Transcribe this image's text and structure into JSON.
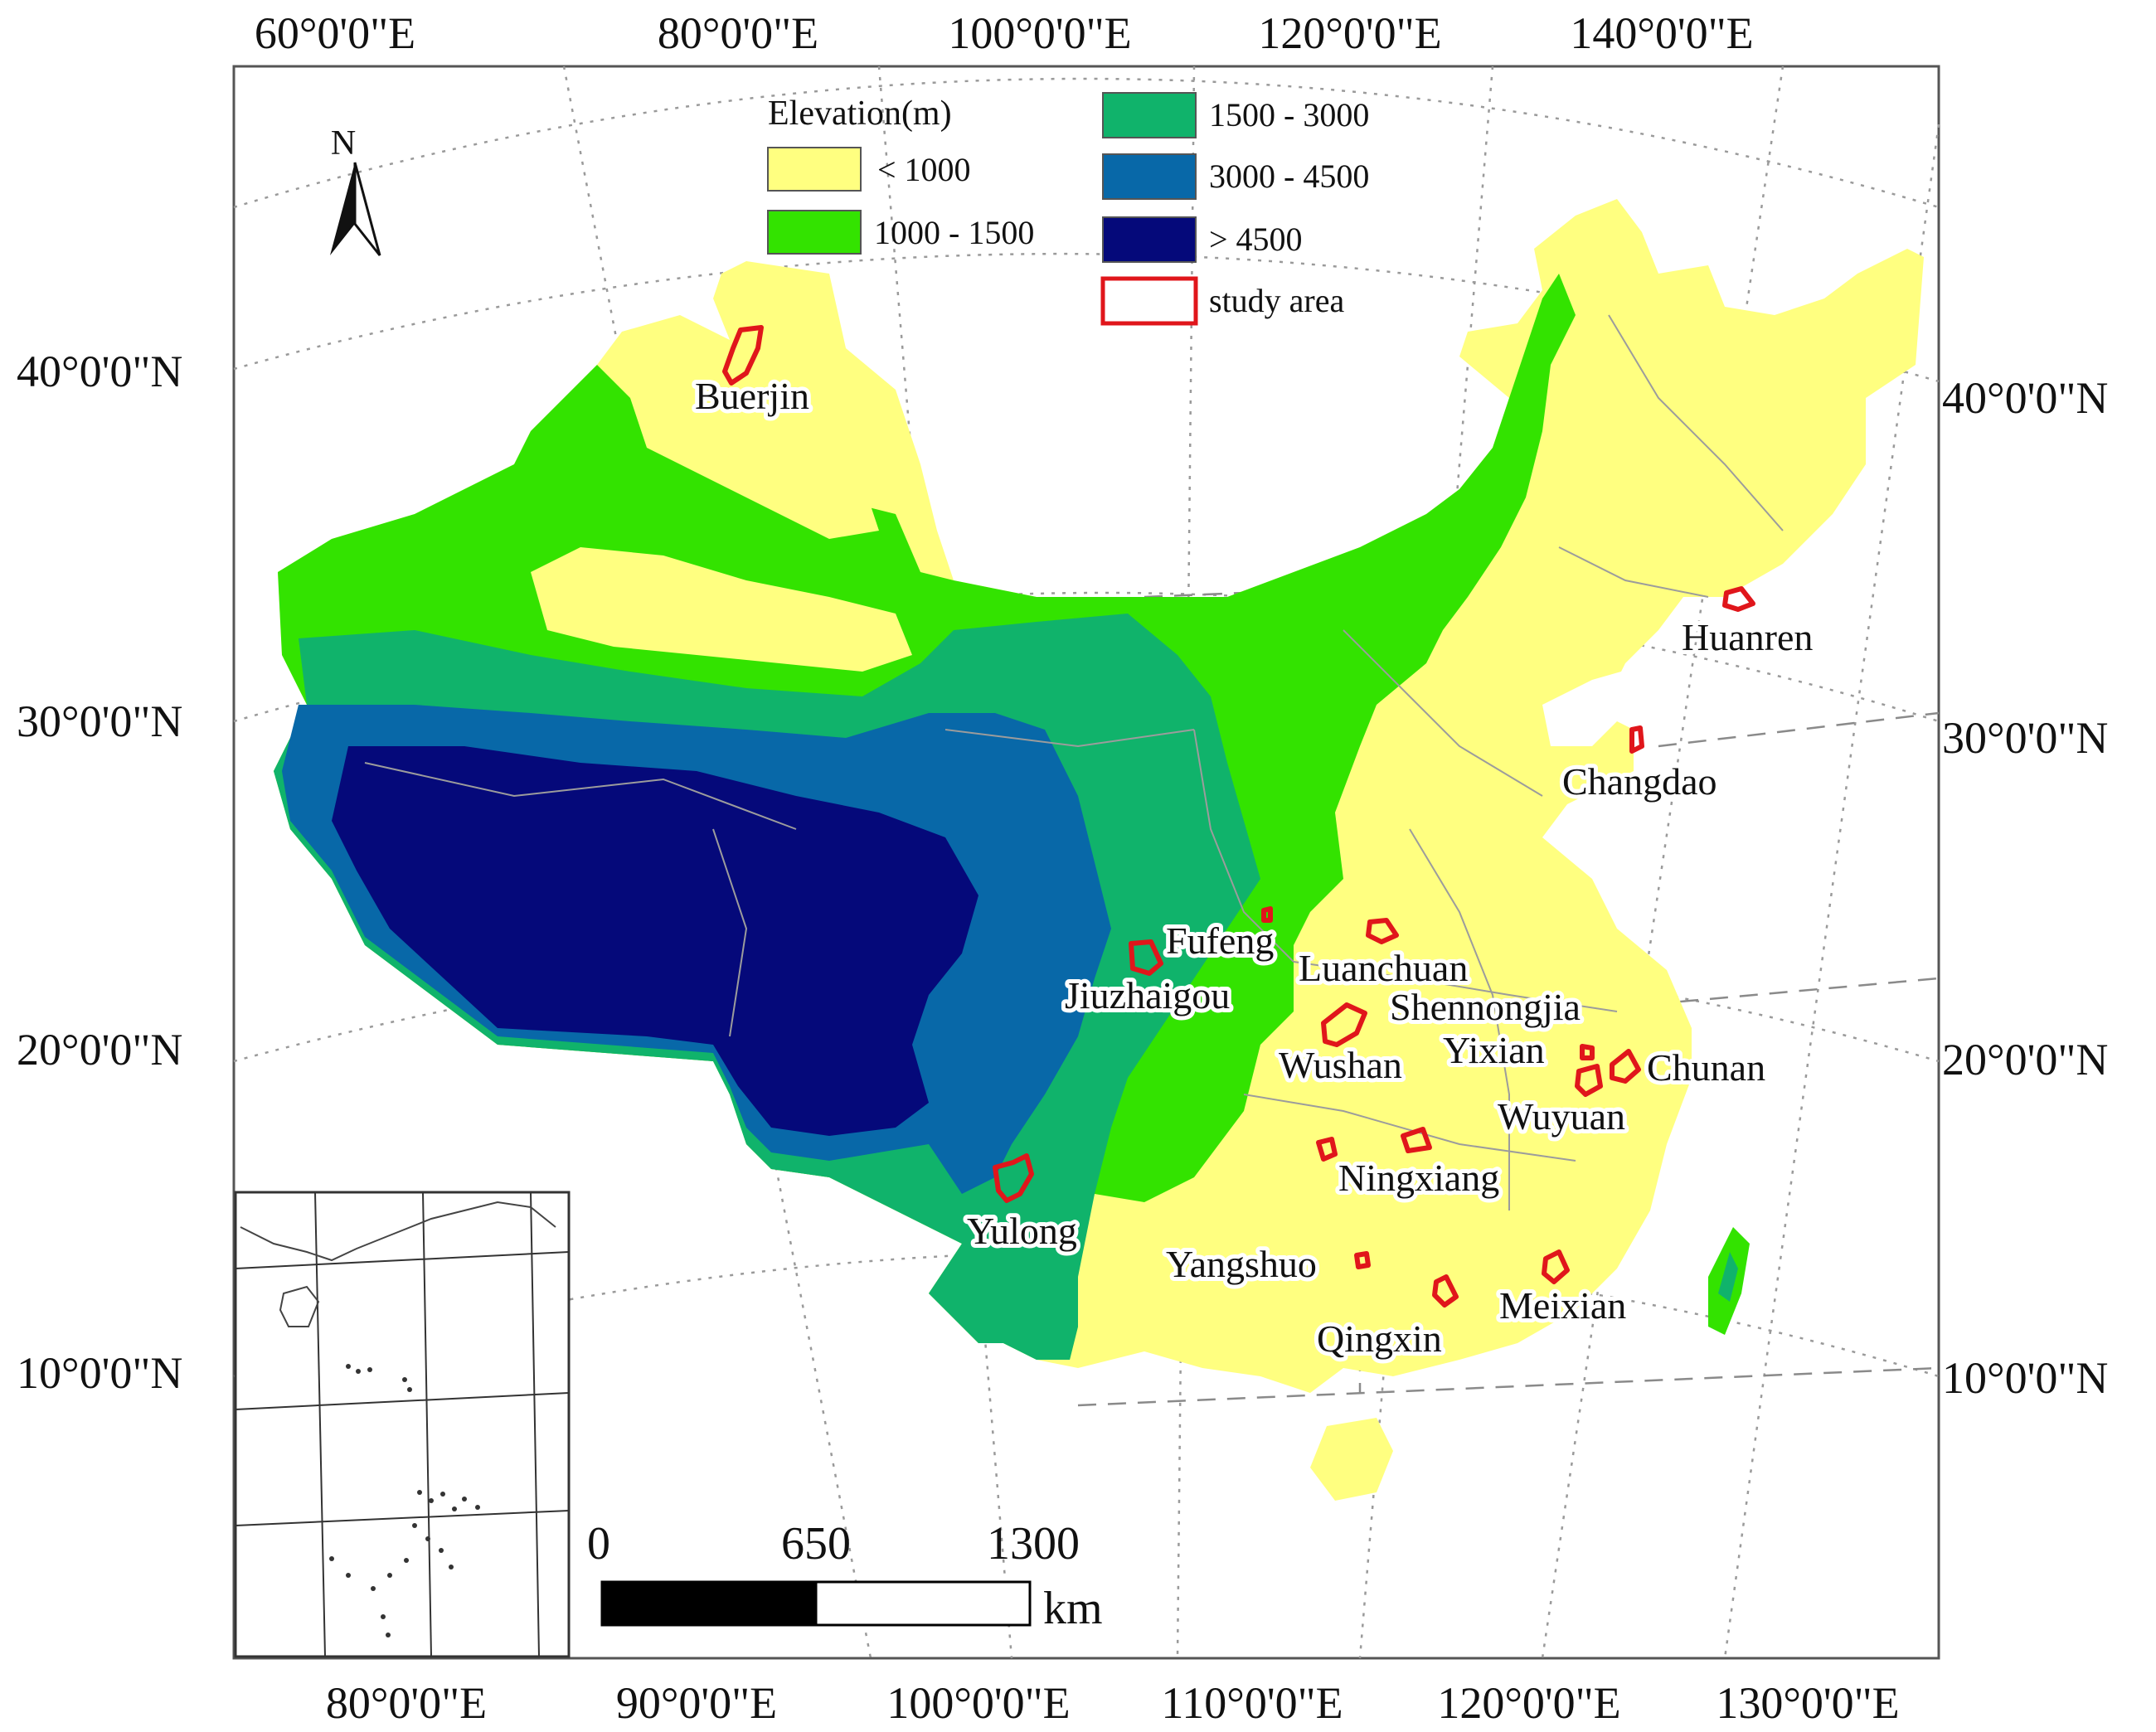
{
  "top_lon_labels": [
    "60°0'0\"E",
    "80°0'0\"E",
    "100°0'0\"E",
    "120°0'0\"E",
    "140°0'0\"E"
  ],
  "bottom_lon_labels": [
    "80°0'0\"E",
    "90°0'0\"E",
    "100°0'0\"E",
    "110°0'0\"E",
    "120°0'0\"E",
    "130°0'0\"E"
  ],
  "left_lat_labels": [
    "40°0'0\"N",
    "30°0'0\"N",
    "20°0'0\"N",
    "10°0'0\"N"
  ],
  "right_lat_labels": [
    "40°0'0\"N",
    "30°0'0\"N",
    "20°0'0\"N",
    "10°0'0\"N"
  ],
  "north_arrow": {
    "label": "N",
    "icon": "north-arrow-icon"
  },
  "legend": {
    "title": "Elevation(m)",
    "classes": [
      {
        "label": "< 1000",
        "color": "#ffff80"
      },
      {
        "label": "1000 - 1500",
        "color": "#33e300"
      },
      {
        "label": "1500 - 3000",
        "color": "#10b36b"
      },
      {
        "label": "3000 - 4500",
        "color": "#0868a8"
      },
      {
        "label": "> 4500",
        "color": "#05097a"
      }
    ],
    "study_area": {
      "label": "study area",
      "color": "#e0161b"
    }
  },
  "study_sites": [
    "Buerjin",
    "Huanren",
    "Changdao",
    "Fufeng",
    "Luanchuan",
    "Jiuzhaigou",
    "Shennongjia",
    "Yixian",
    "Wushan",
    "Chunan",
    "Wuyuan",
    "Ningxiang",
    "Yulong",
    "Yangshuo",
    "Meixian",
    "Qingxin"
  ],
  "scale_bar": {
    "ticks": [
      "0",
      "650",
      "1300"
    ],
    "unit": "km"
  }
}
